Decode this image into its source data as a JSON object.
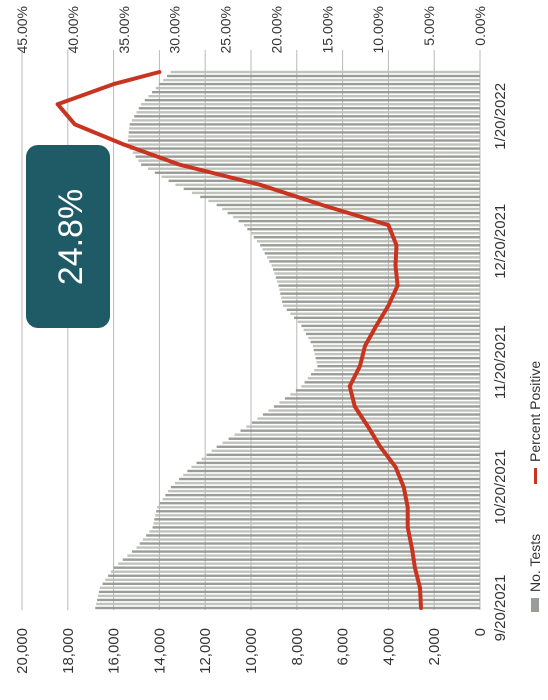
{
  "chart_data": {
    "type": "bar+line",
    "orientation": "rotated-90-ccw",
    "title": "",
    "left_axis": {
      "ticks": [
        "20,000",
        "18,000",
        "16,000",
        "14,000",
        "12,000",
        "10,000",
        "8,000",
        "6,000",
        "4,000",
        "2,000",
        "0"
      ],
      "range": [
        0,
        20000
      ]
    },
    "right_axis": {
      "ticks": [
        "45.00%",
        "40.00%",
        "35.00%",
        "30.00%",
        "25.00%",
        "20.00%",
        "15.00%",
        "10.00%",
        "5.00%",
        "0.00%"
      ],
      "range": [
        0,
        45
      ]
    },
    "x_ticks": [
      "9/20/2021",
      "10/20/2021",
      "11/20/2021",
      "12/20/2021",
      "1/20/2022"
    ],
    "x_range": [
      "2021-09-20",
      "2022-01-31"
    ],
    "legend": [
      {
        "name": "No. Tests",
        "color": "#9a9c98",
        "type": "bar"
      },
      {
        "name": "Percent Positive",
        "color": "#c8341f",
        "type": "line"
      }
    ],
    "series": [
      {
        "name": "No. Tests",
        "points": [
          [
            "2021-09-20",
            16800
          ],
          [
            "2021-09-25",
            16600
          ],
          [
            "2021-09-30",
            16000
          ],
          [
            "2021-10-05",
            15000
          ],
          [
            "2021-10-10",
            14300
          ],
          [
            "2021-10-15",
            14100
          ],
          [
            "2021-10-20",
            13500
          ],
          [
            "2021-10-25",
            12600
          ],
          [
            "2021-10-30",
            11500
          ],
          [
            "2021-11-04",
            10200
          ],
          [
            "2021-11-09",
            9000
          ],
          [
            "2021-11-14",
            7800
          ],
          [
            "2021-11-19",
            7100
          ],
          [
            "2021-11-24",
            7300
          ],
          [
            "2021-11-29",
            7800
          ],
          [
            "2021-12-04",
            8600
          ],
          [
            "2021-12-09",
            8800
          ],
          [
            "2021-12-14",
            9100
          ],
          [
            "2021-12-19",
            9600
          ],
          [
            "2021-12-24",
            10300
          ],
          [
            "2021-12-29",
            11500
          ],
          [
            "2022-01-03",
            13300
          ],
          [
            "2022-01-08",
            14800
          ],
          [
            "2022-01-13",
            15400
          ],
          [
            "2022-01-18",
            15300
          ],
          [
            "2022-01-23",
            14800
          ],
          [
            "2022-01-28",
            14000
          ],
          [
            "2022-01-31",
            13500
          ]
        ]
      },
      {
        "name": "Percent Positive",
        "points": [
          [
            "2021-09-20",
            5.8
          ],
          [
            "2021-09-25",
            5.9
          ],
          [
            "2021-09-30",
            6.4
          ],
          [
            "2021-10-05",
            6.7
          ],
          [
            "2021-10-10",
            7.1
          ],
          [
            "2021-10-15",
            7.1
          ],
          [
            "2021-10-20",
            7.5
          ],
          [
            "2021-10-25",
            8.3
          ],
          [
            "2021-10-30",
            9.8
          ],
          [
            "2021-11-04",
            11.0
          ],
          [
            "2021-11-09",
            12.3
          ],
          [
            "2021-11-14",
            12.8
          ],
          [
            "2021-11-19",
            11.8
          ],
          [
            "2021-11-24",
            11.3
          ],
          [
            "2021-11-29",
            10.2
          ],
          [
            "2021-12-04",
            9.0
          ],
          [
            "2021-12-09",
            8.1
          ],
          [
            "2021-12-14",
            8.3
          ],
          [
            "2021-12-19",
            8.2
          ],
          [
            "2021-12-24",
            9.0
          ],
          [
            "2021-12-29",
            15.5
          ],
          [
            "2022-01-03",
            21.6
          ],
          [
            "2022-01-08",
            29.5
          ],
          [
            "2022-01-13",
            35.0
          ],
          [
            "2022-01-18",
            39.8
          ],
          [
            "2022-01-23",
            41.5
          ],
          [
            "2022-01-28",
            36.0
          ],
          [
            "2022-01-31",
            31.5
          ]
        ]
      }
    ],
    "annotation": {
      "text": "24.8%",
      "bg_color": "#1f5b66",
      "text_color": "#ffffff"
    },
    "grid": true,
    "legend_position": "bottom"
  }
}
